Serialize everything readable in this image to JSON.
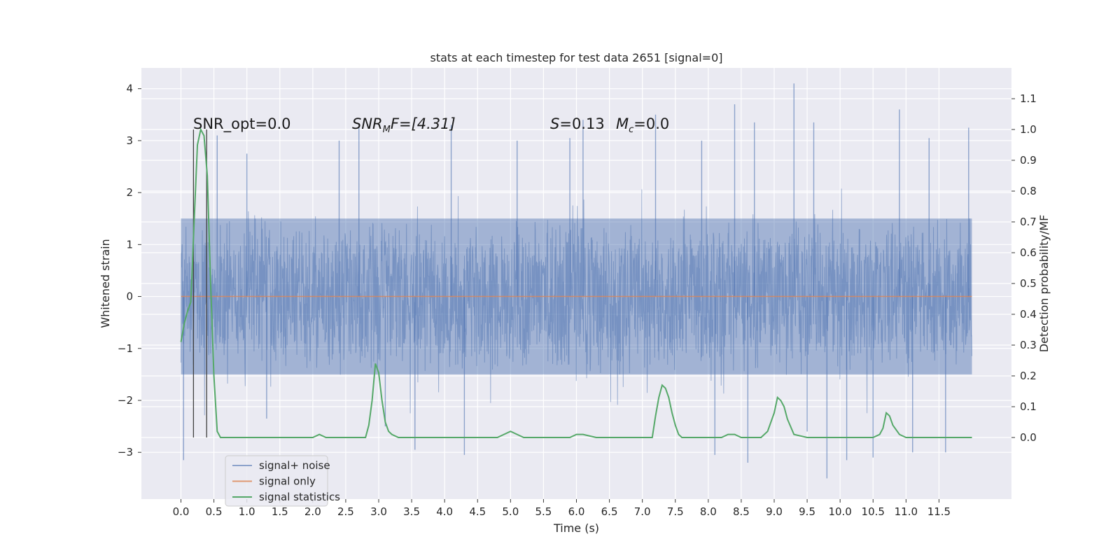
{
  "chart_data": {
    "type": "line",
    "title": "stats at each timestep for test data 2651 [signal=0]",
    "xlabel": "Time (s)",
    "ylabel": "Whitened strain",
    "y2label": "Detection probability/MF",
    "xlim": [
      -0.6,
      12.6
    ],
    "ylim": [
      -3.9,
      4.4
    ],
    "y2lim": [
      -0.2,
      1.2
    ],
    "xticks": [
      "0.0",
      "0.5",
      "1.0",
      "1.5",
      "2.0",
      "2.5",
      "3.0",
      "3.5",
      "4.0",
      "4.5",
      "5.0",
      "5.5",
      "6.0",
      "6.5",
      "7.0",
      "7.5",
      "8.0",
      "8.5",
      "9.0",
      "9.5",
      "10.0",
      "10.5",
      "11.0",
      "11.5"
    ],
    "yticks": [
      "−3",
      "−2",
      "−1",
      "0",
      "1",
      "2",
      "3",
      "4"
    ],
    "y2ticks": [
      "0.0",
      "0.1",
      "0.2",
      "0.3",
      "0.4",
      "0.5",
      "0.6",
      "0.7",
      "0.8",
      "0.9",
      "1.0",
      "1.1"
    ],
    "grid": true,
    "legend_position": "lower-left",
    "annotations": {
      "snr_opt": "SNR_opt=0.0",
      "snr_mf_base": "SNR",
      "snr_mf_sub": "M",
      "snr_mf_rest": "F=[4.31]",
      "s_label": "S",
      "s_value": "=0.13",
      "mc_base": "M",
      "mc_sub": "c",
      "mc_value": "=0.0"
    },
    "vertical_markers_x": [
      0.19,
      0.39
    ],
    "series": [
      {
        "name": "signal+ noise",
        "color": "#4c72b0",
        "x_range": [
          0.0,
          12.0
        ],
        "envelope": {
          "typical_low": -1.5,
          "typical_high": 1.5,
          "min": -3.5,
          "max": 4.1
        },
        "spikes": [
          [
            0.04,
            -3.15
          ],
          [
            0.55,
            3.1
          ],
          [
            1.0,
            2.75
          ],
          [
            1.3,
            -2.35
          ],
          [
            2.4,
            3.0
          ],
          [
            2.7,
            3.25
          ],
          [
            3.1,
            -2.5
          ],
          [
            3.55,
            -2.95
          ],
          [
            4.1,
            3.3
          ],
          [
            4.3,
            -3.05
          ],
          [
            5.1,
            3.0
          ],
          [
            5.9,
            3.05
          ],
          [
            6.1,
            3.4
          ],
          [
            7.2,
            3.5
          ],
          [
            7.9,
            3.0
          ],
          [
            8.1,
            -3.05
          ],
          [
            8.4,
            3.7
          ],
          [
            8.6,
            -3.2
          ],
          [
            8.7,
            3.35
          ],
          [
            9.3,
            4.1
          ],
          [
            9.5,
            -2.6
          ],
          [
            9.6,
            3.35
          ],
          [
            9.8,
            -3.5
          ],
          [
            10.1,
            -3.15
          ],
          [
            10.5,
            -3.1
          ],
          [
            10.9,
            3.6
          ],
          [
            11.1,
            -3.0
          ],
          [
            11.35,
            3.05
          ],
          [
            11.6,
            -3.0
          ],
          [
            11.95,
            3.25
          ]
        ]
      },
      {
        "name": "signal only",
        "color": "#dd8452",
        "x": [
          0.0,
          12.0
        ],
        "y": [
          0.0,
          0.0
        ]
      },
      {
        "name": "signal statistics",
        "color": "#55a868",
        "axis": "right",
        "x": [
          0.0,
          0.05,
          0.1,
          0.15,
          0.2,
          0.25,
          0.3,
          0.35,
          0.4,
          0.45,
          0.5,
          0.55,
          0.6,
          0.7,
          0.8,
          1.0,
          1.2,
          1.5,
          2.0,
          2.1,
          2.2,
          2.4,
          2.6,
          2.8,
          2.85,
          2.9,
          2.95,
          3.0,
          3.05,
          3.1,
          3.15,
          3.2,
          3.3,
          3.5,
          3.8,
          4.0,
          4.5,
          4.8,
          4.9,
          5.0,
          5.1,
          5.2,
          5.5,
          5.9,
          6.0,
          6.1,
          6.3,
          7.0,
          7.15,
          7.2,
          7.25,
          7.3,
          7.35,
          7.4,
          7.45,
          7.5,
          7.55,
          7.6,
          7.7,
          8.0,
          8.2,
          8.3,
          8.4,
          8.5,
          8.6,
          8.8,
          8.9,
          9.0,
          9.05,
          9.1,
          9.15,
          9.2,
          9.3,
          9.5,
          9.8,
          10.0,
          10.4,
          10.5,
          10.6,
          10.65,
          10.7,
          10.75,
          10.8,
          10.9,
          11.0,
          11.5,
          11.6,
          11.8,
          12.0
        ],
        "y": [
          0.31,
          0.37,
          0.41,
          0.44,
          0.7,
          0.95,
          1.0,
          0.98,
          0.85,
          0.5,
          0.2,
          0.02,
          0.0,
          0.0,
          0.0,
          0.0,
          0.0,
          0.0,
          0.0,
          0.01,
          0.0,
          0.0,
          0.0,
          0.0,
          0.04,
          0.12,
          0.24,
          0.21,
          0.12,
          0.05,
          0.02,
          0.01,
          0.0,
          0.0,
          0.0,
          0.0,
          0.0,
          0.0,
          0.01,
          0.02,
          0.01,
          0.0,
          0.0,
          0.0,
          0.01,
          0.01,
          0.0,
          0.0,
          0.0,
          0.07,
          0.13,
          0.17,
          0.16,
          0.13,
          0.08,
          0.04,
          0.01,
          0.0,
          0.0,
          0.0,
          0.0,
          0.01,
          0.01,
          0.0,
          0.0,
          0.0,
          0.02,
          0.08,
          0.13,
          0.12,
          0.1,
          0.06,
          0.01,
          0.0,
          0.0,
          0.0,
          0.0,
          0.0,
          0.01,
          0.03,
          0.08,
          0.07,
          0.04,
          0.01,
          0.0,
          0.0,
          0.0,
          0.0,
          0.0
        ]
      }
    ]
  }
}
